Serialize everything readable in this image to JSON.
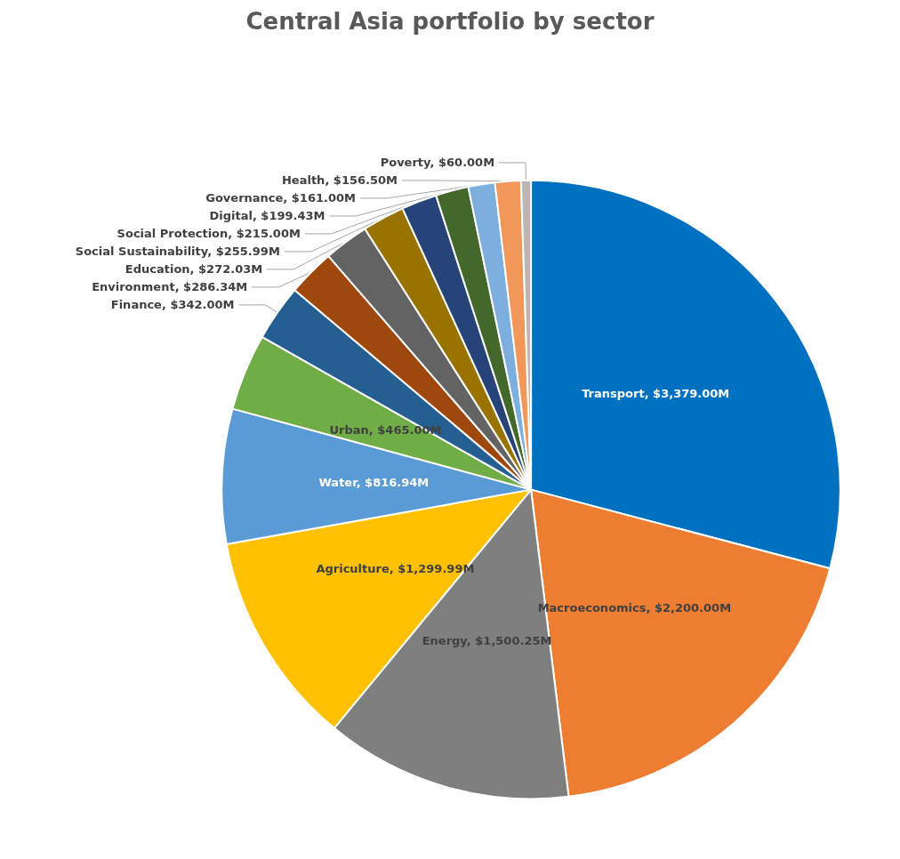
{
  "chart_data": {
    "type": "pie",
    "title": "Central Asia portfolio by sector",
    "categories": [
      "Transport",
      "Macroeconomics",
      "Energy",
      "Agriculture",
      "Water",
      "Urban",
      "Finance",
      "Environment",
      "Education",
      "Social Sustainability",
      "Social Protection",
      "Digital",
      "Governance",
      "Health",
      "Poverty"
    ],
    "values": [
      3379,
      2200,
      1500.25,
      1299.99,
      816.94,
      465,
      342,
      286.34,
      272.03,
      255.99,
      215,
      199.43,
      161,
      156.5,
      60
    ],
    "value_labels": [
      "$3,379.00M",
      "$2,200.00M",
      "$1,500.25M",
      "$1,299.99M",
      "$816.94M",
      "$465.00M",
      "$342.00M",
      "$286.34M",
      "$272.03M",
      "$255.99M",
      "$215.00M",
      "$199.43M",
      "$161.00M",
      "$156.50M",
      "$60.00M"
    ],
    "colors": [
      "#0070c0",
      "#ed7d31",
      "#7f7f7f",
      "#ffc000",
      "#5b9bd5",
      "#70ad47",
      "#255e91",
      "#9e480e",
      "#636363",
      "#997300",
      "#264478",
      "#43682b",
      "#7cafdd",
      "#f1975a",
      "#b7b7b7"
    ],
    "legend": false
  }
}
